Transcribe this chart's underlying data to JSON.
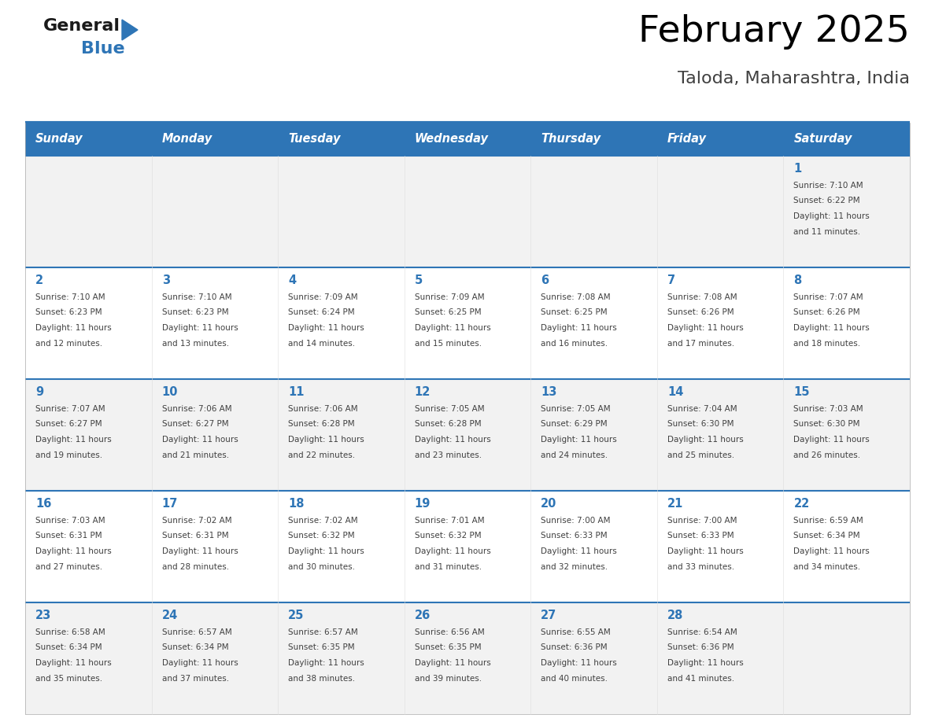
{
  "title": "February 2025",
  "subtitle": "Taloda, Maharashtra, India",
  "days_of_week": [
    "Sunday",
    "Monday",
    "Tuesday",
    "Wednesday",
    "Thursday",
    "Friday",
    "Saturday"
  ],
  "header_bg": "#2E75B6",
  "header_text": "#FFFFFF",
  "cell_bg_odd": "#F2F2F2",
  "cell_bg_even": "#FFFFFF",
  "cell_border": "#2E75B6",
  "day_num_color": "#2E75B6",
  "info_color": "#404040",
  "title_color": "#000000",
  "subtitle_color": "#404040",
  "logo_general_color": "#1A1A1A",
  "logo_blue_color": "#2E75B6",
  "background_color": "#FFFFFF",
  "calendar_data": [
    [
      null,
      null,
      null,
      null,
      null,
      null,
      {
        "day": 1,
        "sunrise": "7:10 AM",
        "sunset": "6:22 PM",
        "daylight": "11 hours and 11 minutes."
      }
    ],
    [
      {
        "day": 2,
        "sunrise": "7:10 AM",
        "sunset": "6:23 PM",
        "daylight": "11 hours and 12 minutes."
      },
      {
        "day": 3,
        "sunrise": "7:10 AM",
        "sunset": "6:23 PM",
        "daylight": "11 hours and 13 minutes."
      },
      {
        "day": 4,
        "sunrise": "7:09 AM",
        "sunset": "6:24 PM",
        "daylight": "11 hours and 14 minutes."
      },
      {
        "day": 5,
        "sunrise": "7:09 AM",
        "sunset": "6:25 PM",
        "daylight": "11 hours and 15 minutes."
      },
      {
        "day": 6,
        "sunrise": "7:08 AM",
        "sunset": "6:25 PM",
        "daylight": "11 hours and 16 minutes."
      },
      {
        "day": 7,
        "sunrise": "7:08 AM",
        "sunset": "6:26 PM",
        "daylight": "11 hours and 17 minutes."
      },
      {
        "day": 8,
        "sunrise": "7:07 AM",
        "sunset": "6:26 PM",
        "daylight": "11 hours and 18 minutes."
      }
    ],
    [
      {
        "day": 9,
        "sunrise": "7:07 AM",
        "sunset": "6:27 PM",
        "daylight": "11 hours and 19 minutes."
      },
      {
        "day": 10,
        "sunrise": "7:06 AM",
        "sunset": "6:27 PM",
        "daylight": "11 hours and 21 minutes."
      },
      {
        "day": 11,
        "sunrise": "7:06 AM",
        "sunset": "6:28 PM",
        "daylight": "11 hours and 22 minutes."
      },
      {
        "day": 12,
        "sunrise": "7:05 AM",
        "sunset": "6:28 PM",
        "daylight": "11 hours and 23 minutes."
      },
      {
        "day": 13,
        "sunrise": "7:05 AM",
        "sunset": "6:29 PM",
        "daylight": "11 hours and 24 minutes."
      },
      {
        "day": 14,
        "sunrise": "7:04 AM",
        "sunset": "6:30 PM",
        "daylight": "11 hours and 25 minutes."
      },
      {
        "day": 15,
        "sunrise": "7:03 AM",
        "sunset": "6:30 PM",
        "daylight": "11 hours and 26 minutes."
      }
    ],
    [
      {
        "day": 16,
        "sunrise": "7:03 AM",
        "sunset": "6:31 PM",
        "daylight": "11 hours and 27 minutes."
      },
      {
        "day": 17,
        "sunrise": "7:02 AM",
        "sunset": "6:31 PM",
        "daylight": "11 hours and 28 minutes."
      },
      {
        "day": 18,
        "sunrise": "7:02 AM",
        "sunset": "6:32 PM",
        "daylight": "11 hours and 30 minutes."
      },
      {
        "day": 19,
        "sunrise": "7:01 AM",
        "sunset": "6:32 PM",
        "daylight": "11 hours and 31 minutes."
      },
      {
        "day": 20,
        "sunrise": "7:00 AM",
        "sunset": "6:33 PM",
        "daylight": "11 hours and 32 minutes."
      },
      {
        "day": 21,
        "sunrise": "7:00 AM",
        "sunset": "6:33 PM",
        "daylight": "11 hours and 33 minutes."
      },
      {
        "day": 22,
        "sunrise": "6:59 AM",
        "sunset": "6:34 PM",
        "daylight": "11 hours and 34 minutes."
      }
    ],
    [
      {
        "day": 23,
        "sunrise": "6:58 AM",
        "sunset": "6:34 PM",
        "daylight": "11 hours and 35 minutes."
      },
      {
        "day": 24,
        "sunrise": "6:57 AM",
        "sunset": "6:34 PM",
        "daylight": "11 hours and 37 minutes."
      },
      {
        "day": 25,
        "sunrise": "6:57 AM",
        "sunset": "6:35 PM",
        "daylight": "11 hours and 38 minutes."
      },
      {
        "day": 26,
        "sunrise": "6:56 AM",
        "sunset": "6:35 PM",
        "daylight": "11 hours and 39 minutes."
      },
      {
        "day": 27,
        "sunrise": "6:55 AM",
        "sunset": "6:36 PM",
        "daylight": "11 hours and 40 minutes."
      },
      {
        "day": 28,
        "sunrise": "6:54 AM",
        "sunset": "6:36 PM",
        "daylight": "11 hours and 41 minutes."
      },
      null
    ]
  ]
}
